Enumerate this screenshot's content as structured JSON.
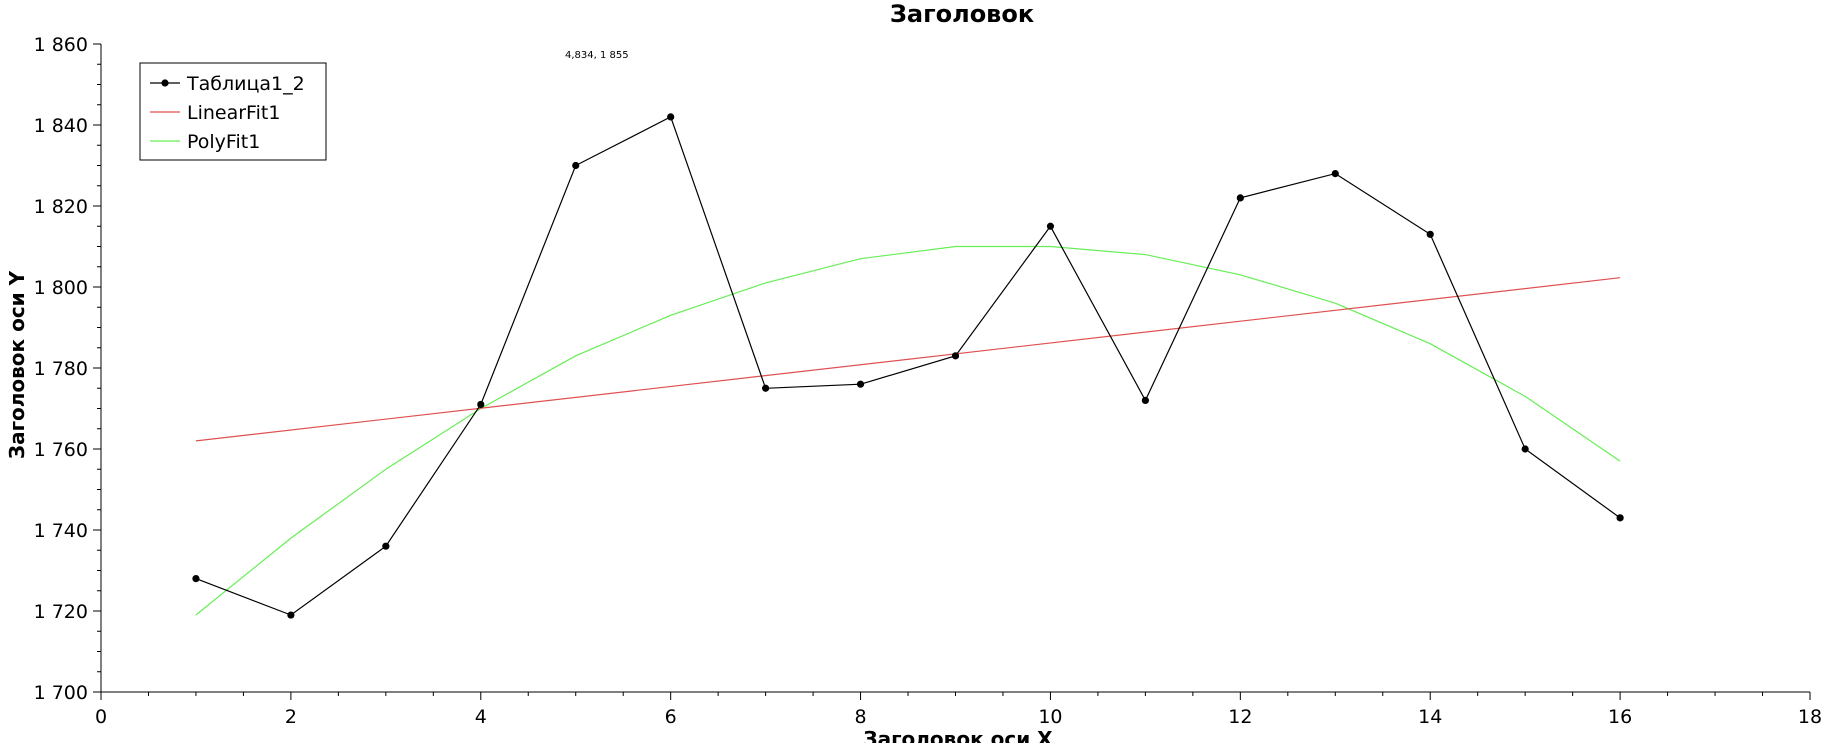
{
  "chart_data": {
    "type": "line",
    "title": "Заголовок",
    "xlabel": "Заголовок оси X",
    "ylabel": "Заголовок оси Y",
    "xlim": [
      0,
      18
    ],
    "ylim": [
      1700,
      1860
    ],
    "x_ticks": [
      0,
      2,
      4,
      6,
      8,
      10,
      12,
      14,
      16,
      18
    ],
    "y_ticks": [
      1700,
      1720,
      1740,
      1760,
      1780,
      1800,
      1820,
      1840,
      1860
    ],
    "y_tick_labels": [
      "1 700",
      "1 720",
      "1 740",
      "1 760",
      "1 780",
      "1 800",
      "1 820",
      "1 840",
      "1 860"
    ],
    "grid": false,
    "legend_position": "top-left",
    "coordinate_readout": "4,834, 1 855",
    "series": [
      {
        "name": "Таблица1_2",
        "color": "#000000",
        "markers": true,
        "x": [
          1,
          2,
          3,
          4,
          5,
          6,
          7,
          8,
          9,
          10,
          11,
          12,
          13,
          14,
          15,
          16
        ],
        "y": [
          1728,
          1719,
          1736,
          1771,
          1830,
          1842,
          1775,
          1776,
          1783,
          1815,
          1772,
          1822,
          1828,
          1813,
          1760,
          1743
        ]
      },
      {
        "name": "LinearFit1",
        "color": "#e05050",
        "markers": false,
        "x": [
          1,
          16
        ],
        "y": [
          1762,
          1802.3
        ]
      },
      {
        "name": "PolyFit1",
        "color": "#66ee55",
        "markers": false,
        "x": [
          1,
          2,
          3,
          4,
          5,
          6,
          7,
          8,
          9,
          10,
          11,
          12,
          13,
          14,
          15,
          16
        ],
        "y": [
          1719,
          1738,
          1755,
          1770,
          1783,
          1793,
          1801,
          1807,
          1810,
          1810,
          1808,
          1803,
          1796,
          1786,
          1773,
          1757
        ]
      }
    ]
  }
}
